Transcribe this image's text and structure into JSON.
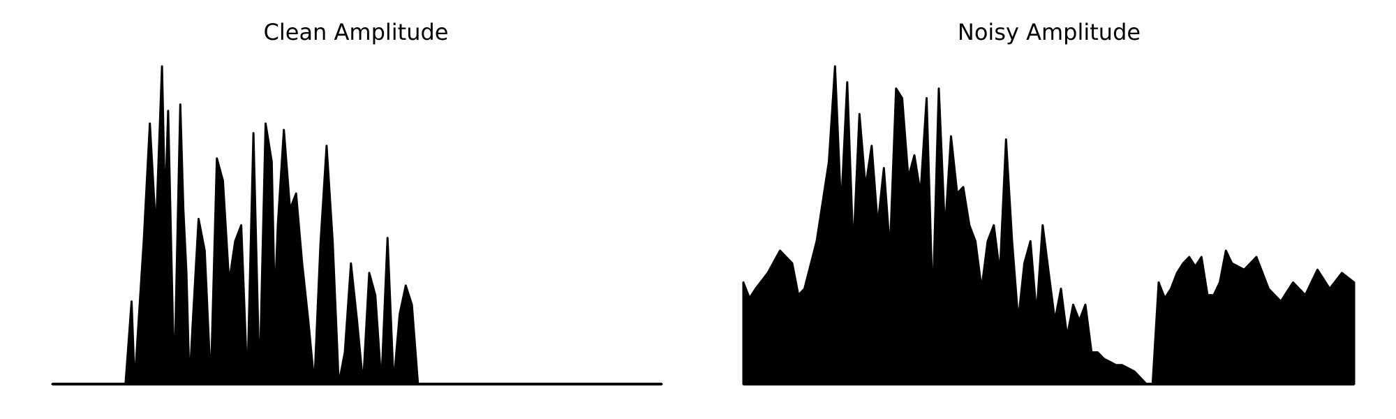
{
  "chart_data": [
    {
      "type": "area",
      "title": "Clean Amplitude",
      "xlabel": "",
      "ylabel": "",
      "axes_visible": false,
      "grid": false,
      "color": "#000000",
      "ylim": [
        0,
        1.0
      ],
      "x": [
        0.0,
        0.12,
        0.13,
        0.135,
        0.14,
        0.15,
        0.16,
        0.17,
        0.18,
        0.185,
        0.19,
        0.2,
        0.21,
        0.215,
        0.22,
        0.225,
        0.23,
        0.24,
        0.25,
        0.26,
        0.27,
        0.28,
        0.29,
        0.3,
        0.31,
        0.32,
        0.33,
        0.34,
        0.35,
        0.36,
        0.365,
        0.37,
        0.38,
        0.39,
        0.4,
        0.41,
        0.42,
        0.43,
        0.44,
        0.45,
        0.46,
        0.47,
        0.48,
        0.49,
        0.5,
        0.51,
        0.52,
        0.53,
        0.54,
        0.55,
        0.56,
        0.57,
        0.58,
        0.59,
        0.6,
        0.61,
        0.62,
        0.63,
        0.64,
        0.65,
        0.66,
        0.67,
        0.68,
        0.69,
        0.7,
        0.71,
        1.0
      ],
      "y": [
        0.0,
        0.0,
        0.26,
        0.0,
        0.15,
        0.45,
        0.82,
        0.48,
        1.0,
        0.55,
        0.86,
        0.0,
        0.88,
        0.55,
        0.35,
        0.0,
        0.18,
        0.52,
        0.42,
        0.0,
        0.71,
        0.64,
        0.32,
        0.45,
        0.5,
        0.0,
        0.79,
        0.0,
        0.82,
        0.7,
        0.25,
        0.5,
        0.8,
        0.55,
        0.6,
        0.38,
        0.2,
        0.0,
        0.44,
        0.75,
        0.45,
        0.0,
        0.1,
        0.38,
        0.2,
        0.0,
        0.35,
        0.28,
        0.0,
        0.46,
        0.0,
        0.22,
        0.31,
        0.25,
        0.0,
        0.0,
        0.0,
        0.0,
        0.0,
        0.0,
        0.0,
        0.0,
        0.0,
        0.0,
        0.0,
        0.0,
        0.0
      ]
    },
    {
      "type": "area",
      "title": "Noisy Amplitude",
      "xlabel": "",
      "ylabel": "",
      "axes_visible": false,
      "grid": false,
      "color": "#000000",
      "ylim": [
        0,
        1.0
      ],
      "x": [
        0.0,
        0.01,
        0.02,
        0.04,
        0.06,
        0.08,
        0.09,
        0.1,
        0.12,
        0.14,
        0.15,
        0.16,
        0.17,
        0.18,
        0.19,
        0.2,
        0.21,
        0.22,
        0.23,
        0.24,
        0.25,
        0.26,
        0.27,
        0.28,
        0.29,
        0.3,
        0.31,
        0.32,
        0.33,
        0.34,
        0.35,
        0.36,
        0.37,
        0.38,
        0.39,
        0.4,
        0.41,
        0.42,
        0.43,
        0.44,
        0.45,
        0.46,
        0.47,
        0.48,
        0.49,
        0.5,
        0.51,
        0.52,
        0.53,
        0.54,
        0.55,
        0.56,
        0.57,
        0.58,
        0.59,
        0.6,
        0.61,
        0.62,
        0.63,
        0.64,
        0.65,
        0.66,
        0.67,
        0.68,
        0.69,
        0.7,
        0.71,
        0.72,
        0.73,
        0.74,
        0.75,
        0.76,
        0.77,
        0.78,
        0.79,
        0.8,
        0.82,
        0.84,
        0.86,
        0.88,
        0.9,
        0.92,
        0.94,
        0.96,
        0.98,
        1.0
      ],
      "y": [
        0.32,
        0.27,
        0.3,
        0.35,
        0.42,
        0.38,
        0.28,
        0.3,
        0.45,
        0.7,
        1.0,
        0.55,
        0.95,
        0.42,
        0.85,
        0.62,
        0.75,
        0.5,
        0.68,
        0.42,
        0.93,
        0.9,
        0.65,
        0.72,
        0.6,
        0.9,
        0.25,
        0.93,
        0.48,
        0.78,
        0.6,
        0.62,
        0.5,
        0.45,
        0.3,
        0.45,
        0.5,
        0.35,
        0.77,
        0.45,
        0.2,
        0.38,
        0.45,
        0.22,
        0.5,
        0.35,
        0.2,
        0.3,
        0.15,
        0.25,
        0.2,
        0.25,
        0.1,
        0.1,
        0.08,
        0.07,
        0.06,
        0.06,
        0.05,
        0.04,
        0.02,
        0.0,
        0.0,
        0.32,
        0.27,
        0.3,
        0.35,
        0.38,
        0.4,
        0.37,
        0.4,
        0.28,
        0.28,
        0.32,
        0.42,
        0.38,
        0.36,
        0.4,
        0.3,
        0.26,
        0.32,
        0.28,
        0.36,
        0.3,
        0.35,
        0.32
      ]
    }
  ]
}
